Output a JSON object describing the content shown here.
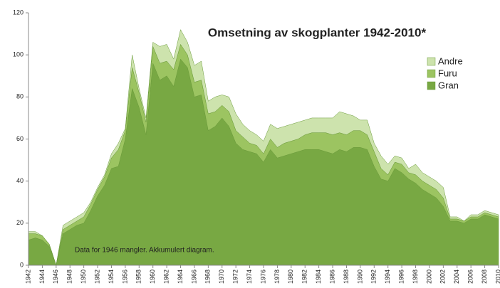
{
  "chart_data": {
    "type": "stacked_area",
    "title": "Omsetning av skogplanter 1942-2010*",
    "annotation": "Data for 1946 mangler.  Akkumulert diagram.",
    "x": [
      1942,
      1943,
      1944,
      1945,
      1946,
      1947,
      1948,
      1949,
      1950,
      1951,
      1952,
      1953,
      1954,
      1955,
      1956,
      1957,
      1958,
      1959,
      1960,
      1961,
      1962,
      1963,
      1964,
      1965,
      1966,
      1967,
      1968,
      1969,
      1970,
      1971,
      1972,
      1973,
      1974,
      1975,
      1976,
      1977,
      1978,
      1979,
      1980,
      1981,
      1982,
      1983,
      1984,
      1985,
      1986,
      1987,
      1988,
      1989,
      1990,
      1991,
      1992,
      1993,
      1994,
      1995,
      1996,
      1997,
      1998,
      1999,
      2000,
      2001,
      2002,
      2003,
      2004,
      2005,
      2006,
      2007,
      2008,
      2009,
      2010
    ],
    "xlim": [
      1942,
      2010
    ],
    "xticks": [
      1942,
      1944,
      1946,
      1948,
      1950,
      1952,
      1954,
      1956,
      1958,
      1960,
      1962,
      1964,
      1966,
      1968,
      1970,
      1972,
      1974,
      1976,
      1978,
      1980,
      1982,
      1984,
      1986,
      1988,
      1990,
      1992,
      1994,
      1996,
      1998,
      2000,
      2002,
      2004,
      2006,
      2008,
      2010
    ],
    "ylim": [
      0,
      120
    ],
    "yticks": [
      0,
      20,
      40,
      60,
      80,
      100,
      120
    ],
    "grid": false,
    "legend_position": "right",
    "series": [
      {
        "name": "Gran",
        "color": "#78a843",
        "values": [
          12,
          13,
          12,
          9,
          0,
          15,
          17,
          19,
          20,
          26,
          33,
          38,
          46,
          47,
          60,
          84,
          75,
          62,
          96,
          88,
          90,
          85,
          98,
          94,
          80,
          81,
          64,
          66,
          70,
          66,
          58,
          55,
          54,
          53,
          49,
          55,
          51,
          52,
          53,
          54,
          55,
          55,
          55,
          54,
          53,
          55,
          54,
          56,
          56,
          55,
          47,
          41,
          40,
          46,
          44,
          41,
          39,
          36,
          34,
          32,
          28,
          21,
          21,
          20,
          22,
          22,
          24,
          23,
          22
        ]
      },
      {
        "name": "Furu",
        "color": "#9cc461",
        "values": [
          3,
          2,
          2,
          1,
          0,
          2,
          2,
          2,
          3,
          3,
          3,
          4,
          5,
          8,
          4,
          10,
          7,
          6,
          8,
          8,
          7,
          8,
          7,
          6,
          7,
          7,
          8,
          7,
          6,
          7,
          6,
          6,
          4,
          4,
          4,
          5,
          5,
          6,
          6,
          6,
          7,
          8,
          8,
          9,
          9,
          8,
          8,
          8,
          8,
          7,
          7,
          5,
          3,
          3,
          4,
          3,
          4,
          4,
          4,
          4,
          4,
          1,
          1,
          1,
          1,
          1,
          1,
          1,
          1
        ]
      },
      {
        "name": "Andre",
        "color": "#cde3ad",
        "values": [
          1,
          1,
          0,
          0,
          0,
          2,
          2,
          2,
          2,
          1,
          1,
          1,
          2,
          3,
          1,
          6,
          2,
          2,
          2,
          8,
          8,
          5,
          7,
          6,
          8,
          9,
          6,
          7,
          5,
          7,
          8,
          6,
          6,
          5,
          6,
          7,
          9,
          8,
          8,
          8,
          7,
          7,
          7,
          7,
          8,
          10,
          10,
          7,
          5,
          7,
          4,
          6,
          5,
          3,
          3,
          2,
          5,
          4,
          4,
          4,
          5,
          1,
          1,
          0,
          1,
          1,
          1,
          1,
          1
        ]
      }
    ]
  }
}
